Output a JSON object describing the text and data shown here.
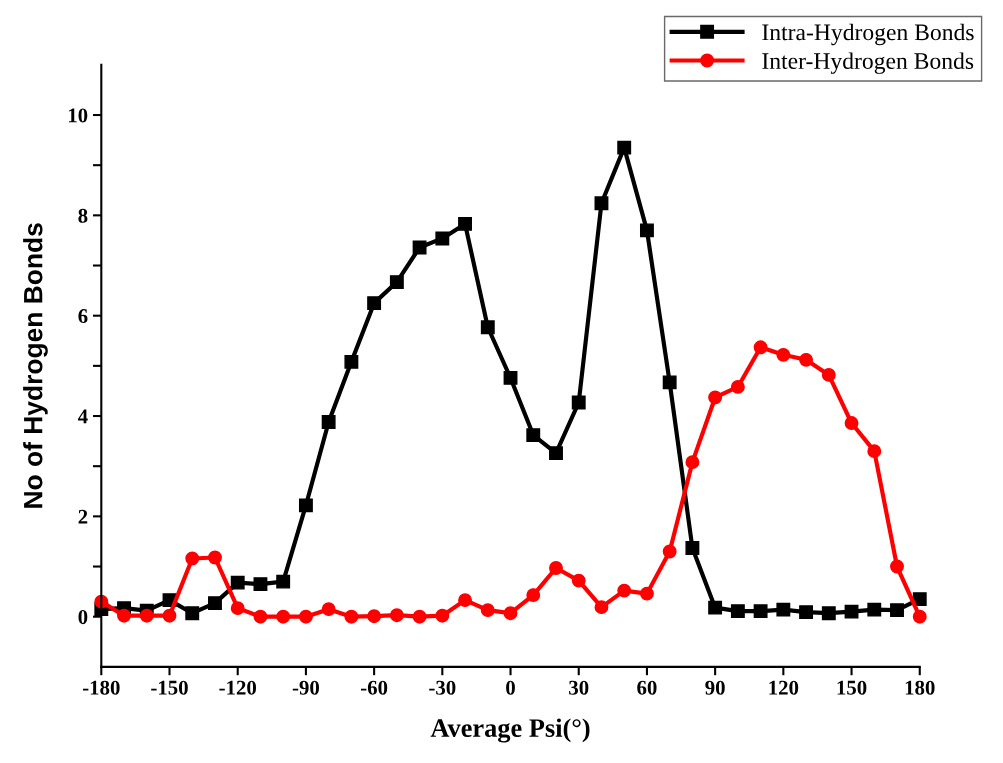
{
  "chart_data": {
    "type": "line",
    "xlabel": "Average Psi(°)",
    "ylabel": "No of Hydrogen Bonds",
    "x": [
      -180,
      -170,
      -160,
      -150,
      -140,
      -130,
      -120,
      -110,
      -100,
      -90,
      -80,
      -70,
      -60,
      -50,
      -40,
      -30,
      -20,
      -10,
      0,
      10,
      20,
      30,
      40,
      50,
      60,
      70,
      80,
      90,
      100,
      110,
      120,
      130,
      140,
      150,
      160,
      170,
      180
    ],
    "series": [
      {
        "name": "Intra-Hydrogen Bonds",
        "color": "#000000",
        "marker": "square",
        "values": [
          0.15,
          0.17,
          0.12,
          0.33,
          0.07,
          0.27,
          0.68,
          0.65,
          0.7,
          2.22,
          3.88,
          5.08,
          6.25,
          6.67,
          7.36,
          7.54,
          7.83,
          5.77,
          4.76,
          3.62,
          3.26,
          4.27,
          8.24,
          9.35,
          7.7,
          4.67,
          1.37,
          0.18,
          0.11,
          0.11,
          0.14,
          0.09,
          0.07,
          0.1,
          0.14,
          0.13,
          0.35
        ]
      },
      {
        "name": "Inter-Hydrogen Bonds",
        "color": "#ff0000",
        "marker": "circle",
        "values": [
          0.3,
          0.02,
          0.02,
          0.02,
          1.16,
          1.18,
          0.17,
          0.0,
          0.0,
          0.0,
          0.15,
          0.0,
          0.01,
          0.03,
          0.0,
          0.02,
          0.33,
          0.13,
          0.07,
          0.43,
          0.97,
          0.72,
          0.19,
          0.52,
          0.46,
          1.3,
          3.08,
          4.37,
          4.58,
          5.37,
          5.22,
          5.12,
          4.82,
          3.86,
          3.3,
          1.0,
          0.0
        ]
      }
    ],
    "xlim": [
      -180,
      180
    ],
    "xticks": [
      -180,
      -150,
      -120,
      -90,
      -60,
      -30,
      0,
      30,
      60,
      90,
      120,
      150,
      180
    ],
    "ylim": [
      -1,
      11
    ],
    "yticks": [
      0,
      {
        "value": 1,
        "label": null
      },
      2,
      {
        "value": 3,
        "label": null
      },
      4,
      {
        "value": 5,
        "label": null
      },
      6,
      {
        "value": 7,
        "label": null
      },
      8,
      {
        "value": 9,
        "label": null
      },
      10
    ],
    "legend": "top right",
    "grid": false,
    "line_style": "solid"
  }
}
